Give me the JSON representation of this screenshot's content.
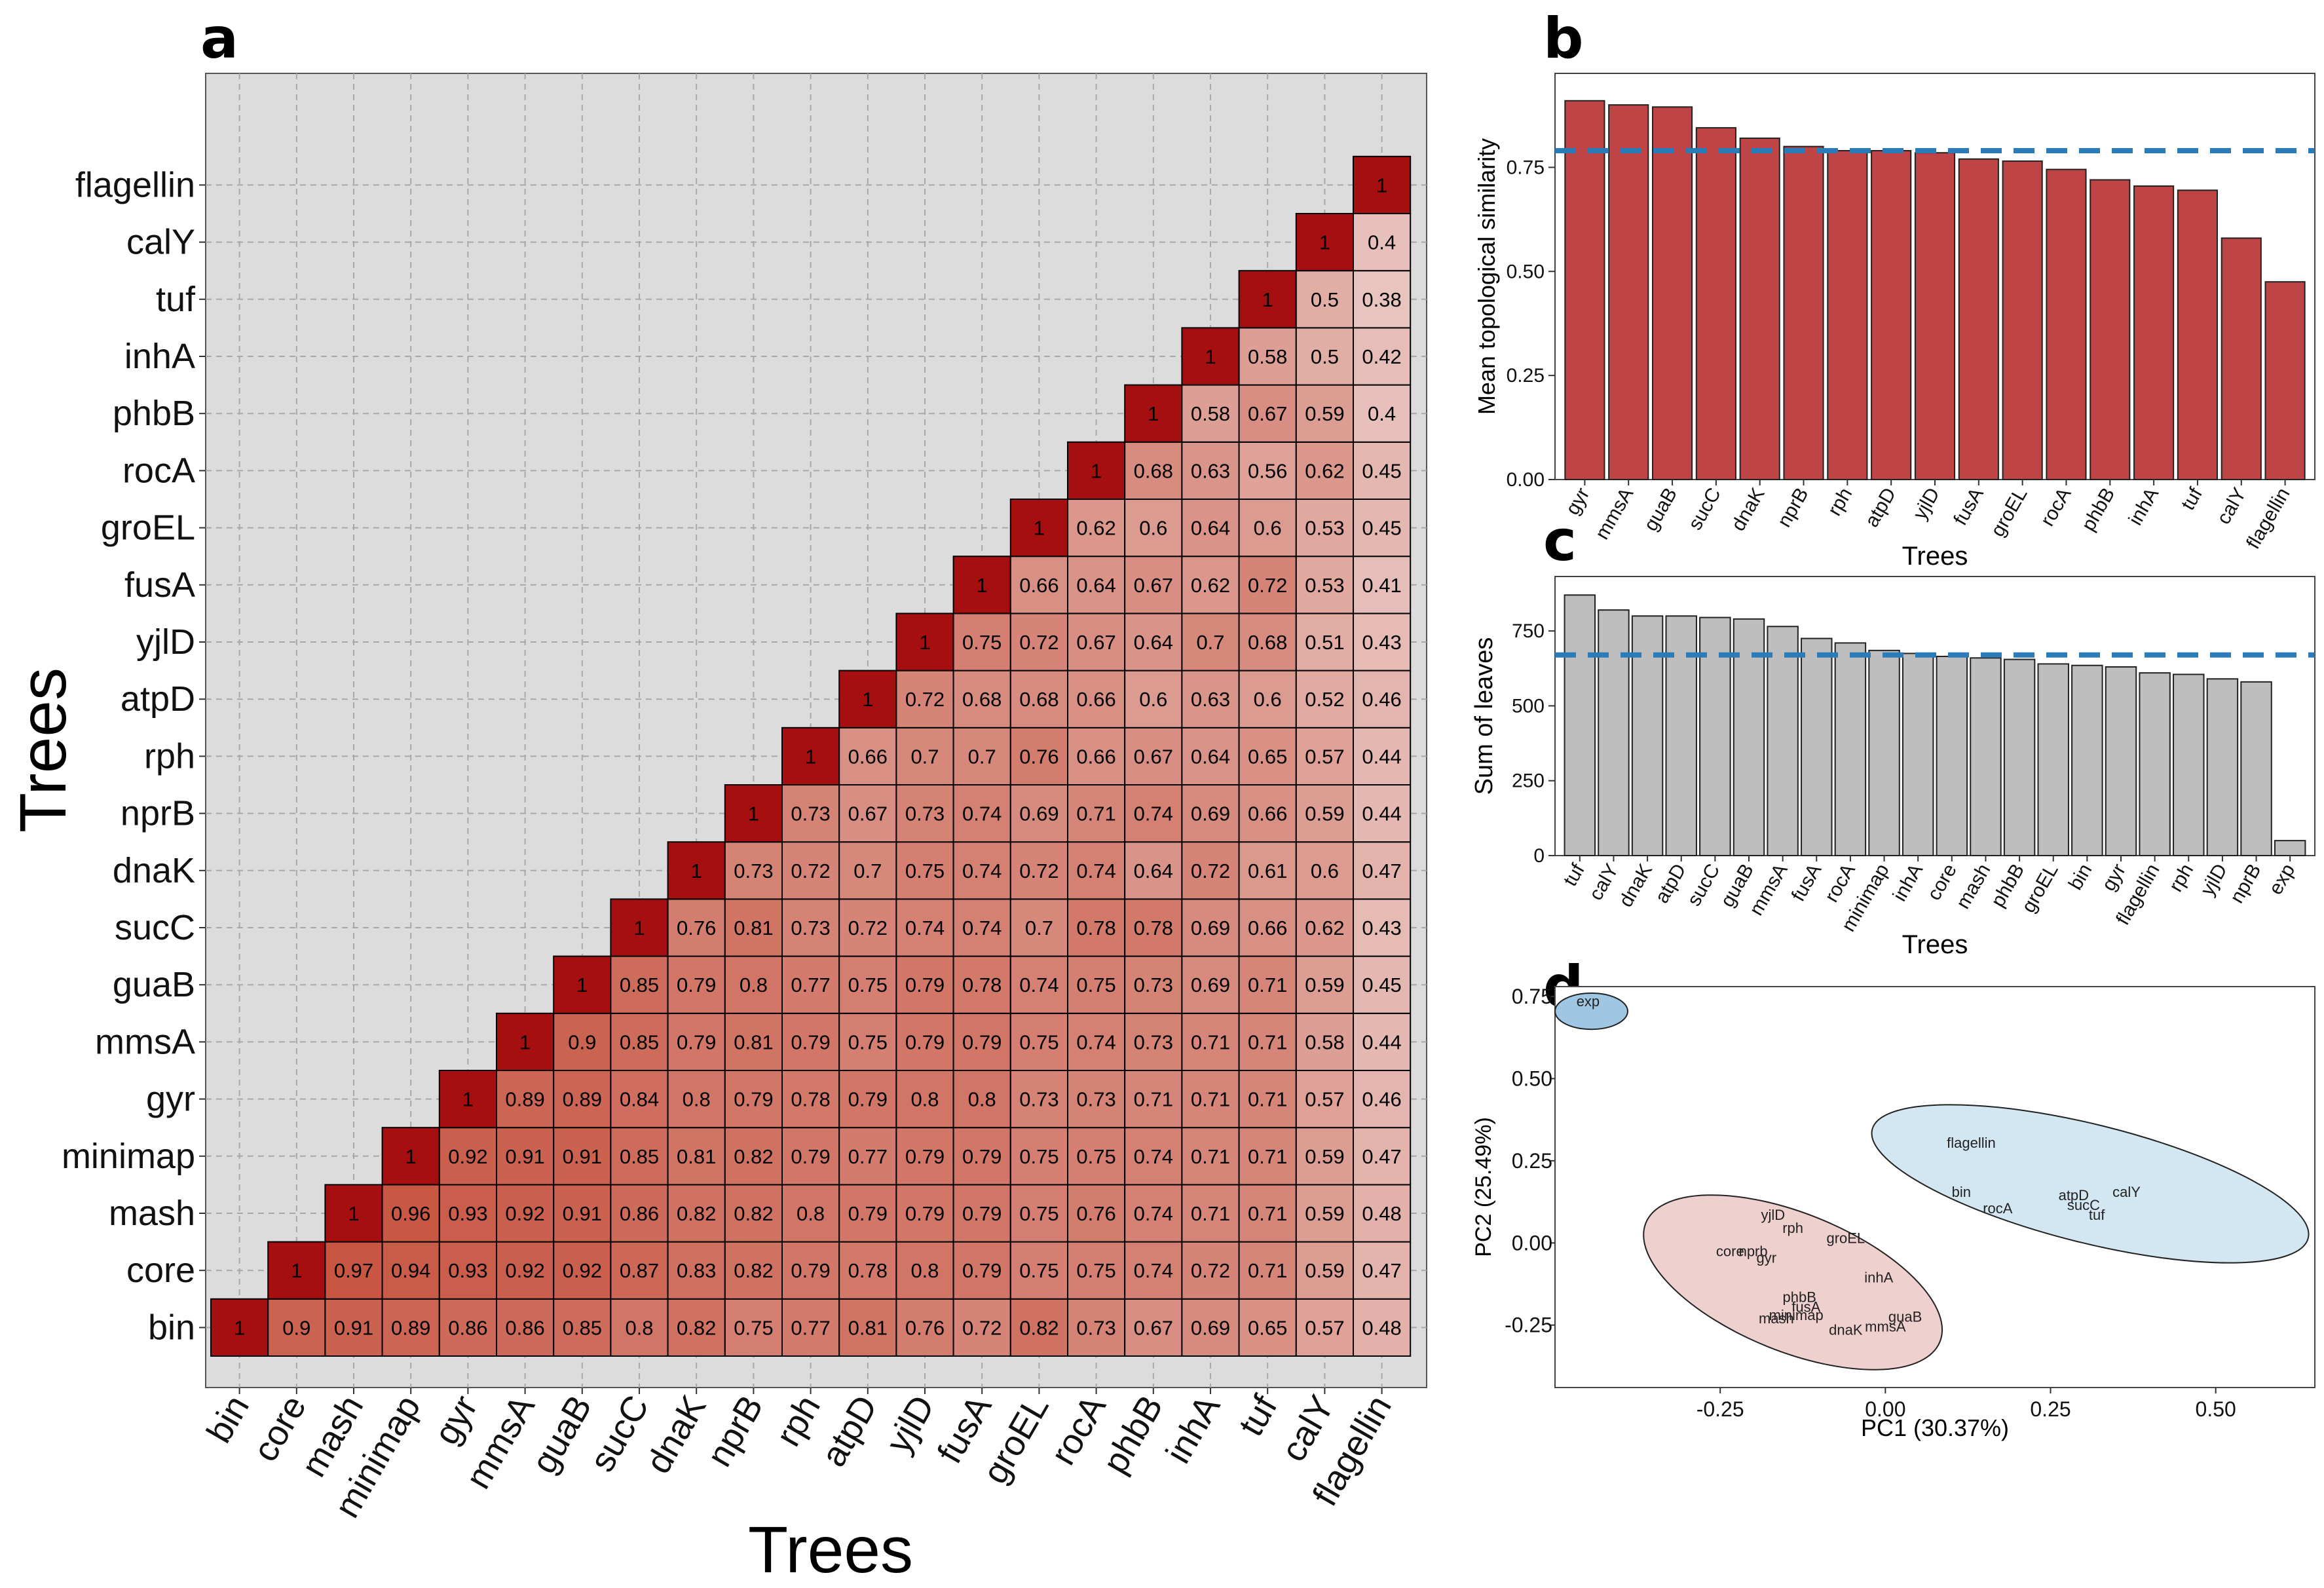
{
  "colors": {
    "heat_high": "#a50f0f",
    "heat_low": "#e8c4bf",
    "bar_b": "#bf4446",
    "bar_c": "#bebebe",
    "dash": "#2b7bb9",
    "ellipse_exp": "#9fc6e3",
    "ellipse_blue": "#d3e7f2",
    "ellipse_red": "#eed0cf",
    "panel_bg": "#dcdcdc"
  },
  "chart_data": [
    {
      "panel": "a",
      "type": "heatmap",
      "xlabel": "Trees",
      "ylabel": "Trees",
      "labels": [
        "bin",
        "core",
        "mash",
        "minimap",
        "gyr",
        "mmsA",
        "guaB",
        "sucC",
        "dnaK",
        "nprB",
        "rph",
        "atpD",
        "yjlD",
        "fusA",
        "groEL",
        "rocA",
        "phbB",
        "inhA",
        "tuf",
        "calY",
        "flagellin"
      ],
      "rows": [
        [
          "1",
          "0.9",
          "0.91",
          "0.89",
          "0.86",
          "0.86",
          "0.85",
          "0.8",
          "0.82",
          "0.75",
          "0.77",
          "0.81",
          "0.76",
          "0.72",
          "0.82",
          "0.73",
          "0.67",
          "0.69",
          "0.65",
          "0.57",
          "0.48"
        ],
        [
          "1",
          "0.97",
          "0.94",
          "0.93",
          "0.92",
          "0.92",
          "0.87",
          "0.83",
          "0.82",
          "0.79",
          "0.78",
          "0.8",
          "0.79",
          "0.75",
          "0.75",
          "0.74",
          "0.72",
          "0.71",
          "0.59",
          "0.47"
        ],
        [
          "1",
          "0.96",
          "0.93",
          "0.92",
          "0.91",
          "0.86",
          "0.82",
          "0.82",
          "0.8",
          "0.79",
          "0.79",
          "0.79",
          "0.75",
          "0.76",
          "0.74",
          "0.71",
          "0.71",
          "0.59",
          "0.48"
        ],
        [
          "1",
          "0.92",
          "0.91",
          "0.91",
          "0.85",
          "0.81",
          "0.82",
          "0.79",
          "0.77",
          "0.79",
          "0.79",
          "0.75",
          "0.75",
          "0.74",
          "0.71",
          "0.71",
          "0.59",
          "0.47"
        ],
        [
          "1",
          "0.89",
          "0.89",
          "0.84",
          "0.8",
          "0.79",
          "0.78",
          "0.79",
          "0.8",
          "0.8",
          "0.73",
          "0.73",
          "0.71",
          "0.71",
          "0.71",
          "0.57",
          "0.46"
        ],
        [
          "1",
          "0.9",
          "0.85",
          "0.79",
          "0.81",
          "0.79",
          "0.75",
          "0.79",
          "0.79",
          "0.75",
          "0.74",
          "0.73",
          "0.71",
          "0.71",
          "0.58",
          "0.44"
        ],
        [
          "1",
          "0.85",
          "0.79",
          "0.8",
          "0.77",
          "0.75",
          "0.79",
          "0.78",
          "0.74",
          "0.75",
          "0.73",
          "0.69",
          "0.71",
          "0.59",
          "0.45"
        ],
        [
          "1",
          "0.76",
          "0.81",
          "0.73",
          "0.72",
          "0.74",
          "0.74",
          "0.7",
          "0.78",
          "0.78",
          "0.69",
          "0.66",
          "0.62",
          "0.43"
        ],
        [
          "1",
          "0.73",
          "0.72",
          "0.7",
          "0.75",
          "0.74",
          "0.72",
          "0.74",
          "0.64",
          "0.72",
          "0.61",
          "0.6",
          "0.47"
        ],
        [
          "1",
          "0.73",
          "0.67",
          "0.73",
          "0.74",
          "0.69",
          "0.71",
          "0.74",
          "0.69",
          "0.66",
          "0.59",
          "0.44"
        ],
        [
          "1",
          "0.66",
          "0.7",
          "0.7",
          "0.76",
          "0.66",
          "0.67",
          "0.64",
          "0.65",
          "0.57",
          "0.44"
        ],
        [
          "1",
          "0.72",
          "0.68",
          "0.68",
          "0.66",
          "0.6",
          "0.63",
          "0.6",
          "0.52",
          "0.46"
        ],
        [
          "1",
          "0.75",
          "0.72",
          "0.67",
          "0.64",
          "0.7",
          "0.68",
          "0.51",
          "0.43"
        ],
        [
          "1",
          "0.66",
          "0.64",
          "0.67",
          "0.62",
          "0.72",
          "0.53",
          "0.41"
        ],
        [
          "1",
          "0.62",
          "0.6",
          "0.64",
          "0.6",
          "0.53",
          "0.45"
        ],
        [
          "1",
          "0.68",
          "0.63",
          "0.56",
          "0.62",
          "0.45"
        ],
        [
          "1",
          "0.58",
          "0.67",
          "0.59",
          "0.4"
        ],
        [
          "1",
          "0.58",
          "0.5",
          "0.42"
        ],
        [
          "1",
          "0.5",
          "0.38"
        ],
        [
          "1",
          "0.4"
        ],
        [
          "1"
        ]
      ]
    },
    {
      "panel": "b",
      "type": "bar",
      "xlabel": "Trees",
      "ylabel": "Mean topological similarity",
      "categories": [
        "gyr",
        "mmsA",
        "guaB",
        "sucC",
        "dnaK",
        "nprB",
        "rph",
        "atpD",
        "yjlD",
        "fusA",
        "groEL",
        "rocA",
        "phbB",
        "inhA",
        "tuf",
        "calY",
        "flagellin"
      ],
      "values": [
        0.91,
        0.9,
        0.895,
        0.845,
        0.82,
        0.8,
        0.79,
        0.79,
        0.785,
        0.77,
        0.765,
        0.745,
        0.72,
        0.705,
        0.695,
        0.58,
        0.475
      ],
      "reference_line": 0.79,
      "yticks": [
        "0.00",
        "0.25",
        "0.50",
        "0.75"
      ],
      "ylim": [
        0,
        0.96
      ]
    },
    {
      "panel": "c",
      "type": "bar",
      "xlabel": "Trees",
      "ylabel": "Sum of leaves",
      "categories": [
        "tuf",
        "calY",
        "dnaK",
        "atpD",
        "sucC",
        "guaB",
        "mmsA",
        "fusA",
        "rocA",
        "minimap",
        "inhA",
        "core",
        "mash",
        "phbB",
        "groEL",
        "bin",
        "gyr",
        "flagellin",
        "rph",
        "yjlD",
        "nprB",
        "exp"
      ],
      "values": [
        870,
        820,
        800,
        800,
        795,
        790,
        765,
        725,
        710,
        685,
        675,
        665,
        660,
        655,
        640,
        635,
        630,
        610,
        605,
        590,
        580,
        50
      ],
      "reference_line": 670,
      "yticks": [
        "0",
        "250",
        "500",
        "750"
      ],
      "ylim": [
        0,
        910
      ]
    },
    {
      "panel": "d",
      "type": "scatter",
      "xlabel": "PC1 (30.37%)",
      "ylabel": "PC2 (25.49%)",
      "xticks": [
        "-0.25",
        "0.00",
        "0.25",
        "0.50"
      ],
      "yticks": [
        "0.75",
        "0.50",
        "0.25",
        "0.00",
        "-0.25"
      ],
      "xlim": [
        -0.5,
        0.65
      ],
      "ylim": [
        -0.44,
        0.78
      ],
      "points": [
        {
          "label": "exp",
          "x": -0.45,
          "y": 0.72
        },
        {
          "label": "flagellin",
          "x": 0.13,
          "y": 0.29
        },
        {
          "label": "bin",
          "x": 0.115,
          "y": 0.14
        },
        {
          "label": "rocA",
          "x": 0.17,
          "y": 0.09
        },
        {
          "label": "atpD",
          "x": 0.285,
          "y": 0.13
        },
        {
          "label": "sucC",
          "x": 0.3,
          "y": 0.1
        },
        {
          "label": "tuf",
          "x": 0.32,
          "y": 0.07
        },
        {
          "label": "calY",
          "x": 0.365,
          "y": 0.14
        },
        {
          "label": "yjlD",
          "x": -0.17,
          "y": 0.07
        },
        {
          "label": "rph",
          "x": -0.14,
          "y": 0.03
        },
        {
          "label": "groEL",
          "x": -0.06,
          "y": 0.0
        },
        {
          "label": "core",
          "x": -0.235,
          "y": -0.04
        },
        {
          "label": "nprb",
          "x": -0.2,
          "y": -0.04
        },
        {
          "label": "gyr",
          "x": -0.18,
          "y": -0.06
        },
        {
          "label": "inhA",
          "x": -0.01,
          "y": -0.12
        },
        {
          "label": "phbB",
          "x": -0.13,
          "y": -0.18
        },
        {
          "label": "fusA",
          "x": -0.12,
          "y": -0.21
        },
        {
          "label": "minimap",
          "x": -0.135,
          "y": -0.235
        },
        {
          "label": "mash",
          "x": -0.165,
          "y": -0.245
        },
        {
          "label": "guaB",
          "x": 0.03,
          "y": -0.24
        },
        {
          "label": "mmsA",
          "x": 0.0,
          "y": -0.27
        },
        {
          "label": "dnaK",
          "x": -0.06,
          "y": -0.28
        }
      ],
      "ellipses": [
        {
          "group": "exp",
          "cx": -0.445,
          "cy": 0.705,
          "rx": 0.055,
          "ry": 0.055
        },
        {
          "group": "blue",
          "cx": 0.31,
          "cy": 0.18,
          "rx": 0.34,
          "ry": 0.18
        },
        {
          "group": "red",
          "cx": -0.14,
          "cy": -0.12,
          "rx": 0.24,
          "ry": 0.21
        }
      ]
    }
  ]
}
